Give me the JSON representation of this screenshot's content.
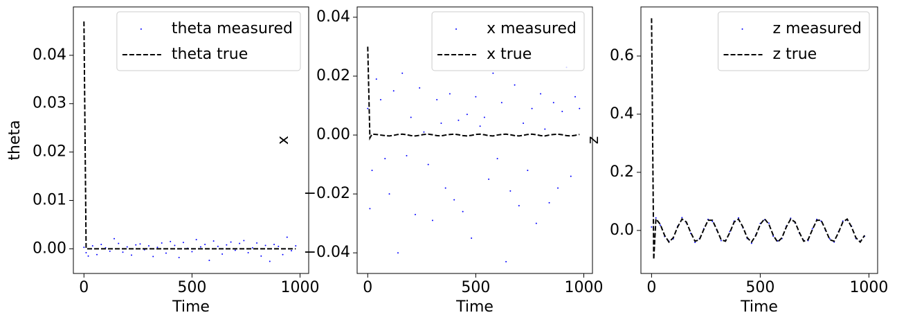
{
  "chart_data": [
    {
      "type": "line",
      "xlabel": "Time",
      "ylabel": "theta",
      "legend": "upper right",
      "xlim": [
        -49,
        1040
      ],
      "xticks": [
        0,
        500,
        1000
      ],
      "ylim": [
        -0.0051,
        0.05
      ],
      "yticks": [
        {
          "value": 0,
          "label": "0.00"
        },
        {
          "value": 0.01,
          "label": "0.01"
        },
        {
          "value": 0.02,
          "label": "0.02"
        },
        {
          "value": 0.03,
          "label": "0.03"
        },
        {
          "value": 0.04,
          "label": "0.04"
        }
      ],
      "x": [
        0,
        10,
        20,
        40,
        60,
        80,
        100,
        120,
        140,
        160,
        180,
        200,
        220,
        240,
        260,
        280,
        300,
        320,
        340,
        360,
        380,
        400,
        420,
        440,
        460,
        480,
        500,
        520,
        540,
        560,
        580,
        600,
        620,
        640,
        660,
        680,
        700,
        720,
        740,
        760,
        780,
        800,
        820,
        840,
        860,
        880,
        900,
        920,
        940,
        960,
        980
      ],
      "series": [
        {
          "name": "theta measured",
          "color": "#0000ff",
          "style": "dots",
          "values": [
            0.0003,
            -0.0008,
            -0.0015,
            0.0006,
            -0.0012,
            0.0009,
            0.0002,
            -0.0005,
            0.0021,
            0.0011,
            -0.0007,
            0.0004,
            -0.0013,
            0.0008,
            0.001,
            -0.0002,
            0.0006,
            -0.0016,
            0.0003,
            0.0012,
            -0.0009,
            0.0015,
            0.0007,
            -0.0018,
            0.0013,
            0.0001,
            -0.0006,
            0.0019,
            0.0004,
            0.0009,
            -0.0024,
            0.0016,
            0.0005,
            -0.0011,
            0.0008,
            0.0014,
            -0.0003,
            0.0011,
            0.0017,
            -0.0008,
            0.0002,
            0.0012,
            -0.0015,
            0.0007,
            -0.0026,
            0.0009,
            0.0005,
            -0.0012,
            0.0024,
            -0.0004,
            0.0006
          ]
        },
        {
          "name": "theta true",
          "color": "#000000",
          "style": "dashed",
          "values": [
            0.047,
            0,
            0,
            0,
            0,
            0,
            0,
            0,
            0,
            0,
            0,
            0,
            0,
            0,
            0,
            0,
            0,
            0,
            0,
            0,
            0,
            0,
            0,
            0,
            0,
            0,
            0,
            0,
            0,
            0,
            0,
            0,
            0,
            0,
            0,
            0,
            0,
            0,
            0,
            0,
            0,
            0,
            0,
            0,
            0,
            0,
            0,
            0,
            0,
            0,
            0
          ]
        }
      ]
    },
    {
      "type": "line",
      "xlabel": "Time",
      "ylabel": "x",
      "legend": "upper right",
      "xlim": [
        -49,
        1040
      ],
      "xticks": [
        0,
        500,
        1000
      ],
      "ylim": [
        -0.047,
        0.0435
      ],
      "yticks": [
        {
          "value": -0.04,
          "label": "−0.04"
        },
        {
          "value": -0.02,
          "label": "−0.02"
        },
        {
          "value": 0,
          "label": "0.00"
        },
        {
          "value": 0.02,
          "label": "0.02"
        },
        {
          "value": 0.04,
          "label": "0.04"
        }
      ],
      "x": [
        0,
        10,
        20,
        40,
        60,
        80,
        100,
        120,
        140,
        160,
        180,
        200,
        220,
        240,
        260,
        280,
        300,
        320,
        340,
        360,
        380,
        400,
        420,
        440,
        460,
        480,
        500,
        520,
        540,
        560,
        580,
        600,
        620,
        640,
        660,
        680,
        700,
        720,
        740,
        760,
        780,
        800,
        820,
        840,
        860,
        880,
        900,
        920,
        940,
        960,
        980
      ],
      "series": [
        {
          "name": "x measured",
          "color": "#0000ff",
          "style": "dots",
          "values": [
            0.009,
            -0.025,
            -0.012,
            0.019,
            0.012,
            -0.008,
            -0.02,
            0.015,
            -0.04,
            0.021,
            -0.007,
            0.006,
            -0.027,
            0.016,
            0.001,
            -0.01,
            -0.029,
            0.012,
            0.004,
            -0.018,
            0.014,
            -0.022,
            0.005,
            -0.026,
            0.007,
            -0.035,
            0.013,
            0.003,
            0.006,
            -0.015,
            0.021,
            -0.008,
            0.011,
            -0.043,
            -0.019,
            0.017,
            -0.024,
            0.004,
            -0.012,
            0.009,
            -0.03,
            0.014,
            0.002,
            -0.023,
            0.011,
            -0.018,
            0.008,
            0.023,
            -0.014,
            0.013,
            0.009
          ]
        },
        {
          "name": "x true",
          "color": "#000000",
          "style": "dashed",
          "values": [
            0.03,
            -0.001,
            0.0003,
            0.0002,
            0,
            -0.0002,
            -0.0003,
            -0.0001,
            0.0002,
            0.0003,
            0.0001,
            -0.0002,
            -0.0003,
            -0.0001,
            0.0002,
            0.0003,
            0.0001,
            -0.0002,
            -0.0003,
            0,
            0.0002,
            0.0003,
            0.0001,
            -0.0002,
            -0.0003,
            -0.0001,
            0.0002,
            0.0003,
            0.0001,
            -0.0002,
            -0.0003,
            0,
            0.0002,
            0.0003,
            0.0001,
            -0.0002,
            -0.0003,
            -0.0001,
            0.0002,
            0.0003,
            0.0001,
            -0.0002,
            -0.0003,
            0,
            0.0002,
            0.0003,
            0.0001,
            -0.0002,
            -0.0003,
            -0.0001,
            0.0002
          ]
        }
      ]
    },
    {
      "type": "line",
      "xlabel": "Time",
      "ylabel": "z",
      "legend": "upper right",
      "xlim": [
        -49,
        1040
      ],
      "xticks": [
        0,
        500,
        1000
      ],
      "ylim": [
        -0.148,
        0.769
      ],
      "yticks": [
        {
          "value": 0,
          "label": "0.0"
        },
        {
          "value": 0.2,
          "label": "0.2"
        },
        {
          "value": 0.4,
          "label": "0.4"
        },
        {
          "value": 0.6,
          "label": "0.6"
        }
      ],
      "x": [
        0,
        10,
        20,
        40,
        60,
        80,
        100,
        120,
        140,
        160,
        180,
        200,
        220,
        240,
        260,
        280,
        300,
        320,
        340,
        360,
        380,
        400,
        420,
        440,
        460,
        480,
        500,
        520,
        540,
        560,
        580,
        600,
        620,
        640,
        660,
        680,
        700,
        720,
        740,
        760,
        780,
        800,
        820,
        840,
        860,
        880,
        900,
        920,
        940,
        960,
        980
      ],
      "series": [
        {
          "name": "z measured",
          "color": "#0000ff",
          "style": "dots",
          "values": [
            0.012,
            -0.085,
            0.043,
            0.018,
            -0.021,
            -0.037,
            -0.029,
            0.015,
            0.044,
            0.026,
            -0.01,
            -0.041,
            -0.029,
            0.006,
            0.038,
            0.031,
            0.001,
            -0.035,
            -0.034,
            -0.004,
            0.032,
            0.043,
            0.009,
            -0.028,
            -0.044,
            -0.014,
            0.024,
            0.037,
            0.025,
            -0.02,
            -0.036,
            -0.028,
            0.015,
            0.042,
            0.026,
            -0.01,
            -0.034,
            -0.035,
            0.006,
            0.038,
            0.032,
            0,
            -0.029,
            -0.04,
            -0.004,
            0.032,
            0.036,
            0.015,
            -0.028,
            -0.037,
            -0.02
          ]
        },
        {
          "name": "z true",
          "color": "#000000",
          "style": "dashed",
          "values": [
            0.73,
            -0.1,
            0.04,
            0.021,
            -0.017,
            -0.04,
            -0.025,
            0.012,
            0.039,
            0.029,
            -0.007,
            -0.037,
            -0.032,
            0.003,
            0.035,
            0.035,
            0.003,
            -0.032,
            -0.037,
            -0.007,
            0.029,
            0.039,
            0.012,
            -0.025,
            -0.04,
            -0.017,
            0.021,
            0.04,
            0.021,
            -0.017,
            -0.04,
            -0.025,
            0.012,
            0.039,
            0.029,
            -0.007,
            -0.037,
            -0.032,
            0.003,
            0.035,
            0.035,
            0.003,
            -0.032,
            -0.037,
            -0.007,
            0.029,
            0.039,
            0.012,
            -0.025,
            -0.04,
            -0.017
          ]
        }
      ]
    }
  ]
}
